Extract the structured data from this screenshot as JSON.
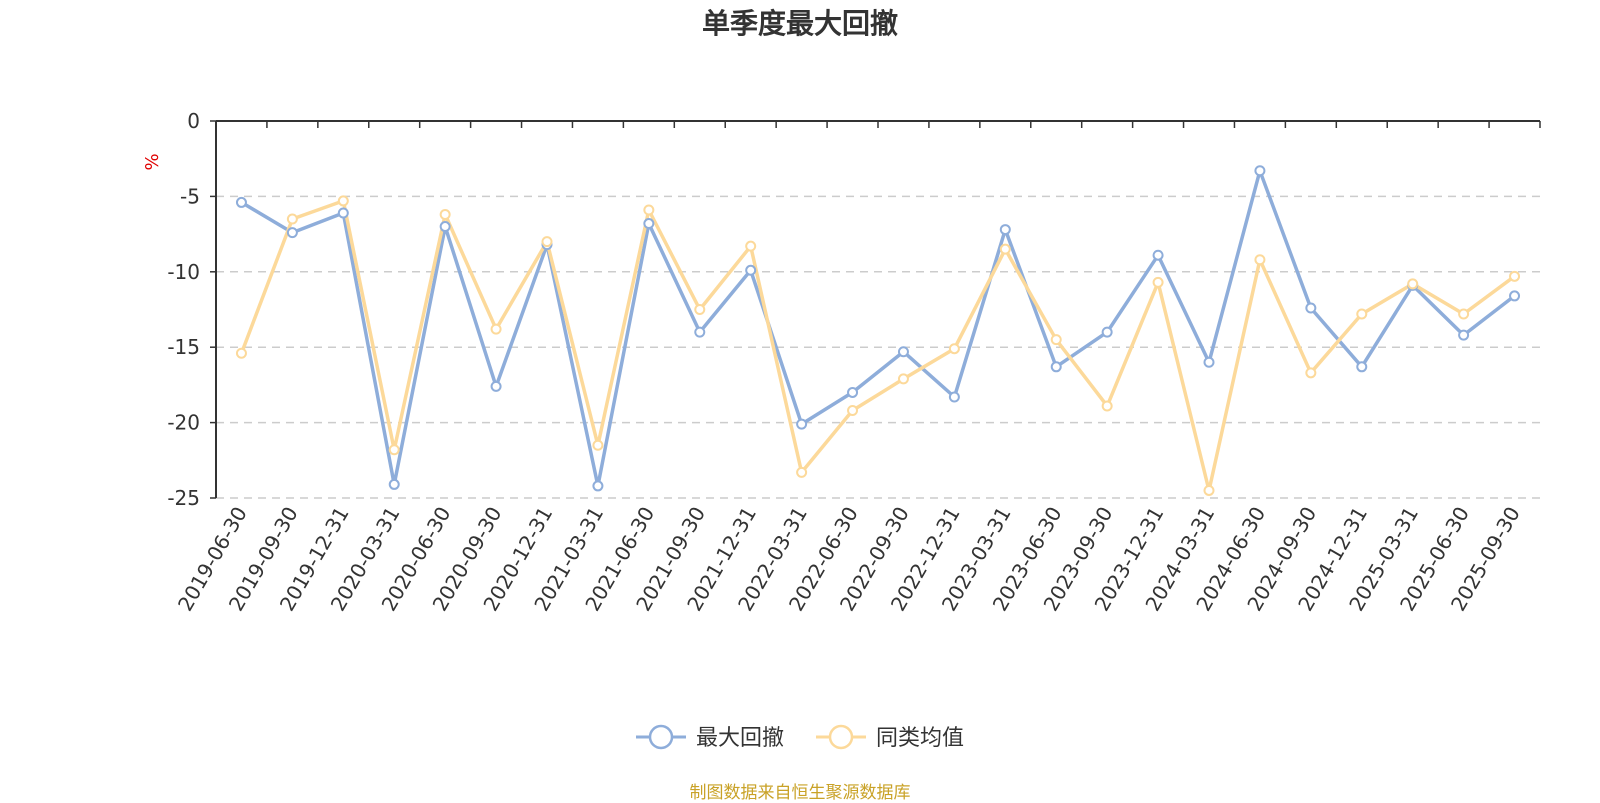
{
  "chart_data": {
    "type": "line",
    "title": "单季度最大回撤",
    "ylabel": "%",
    "ylim": [
      -25,
      0
    ],
    "yticks": [
      0,
      -5,
      -10,
      -15,
      -20,
      -25
    ],
    "grid": true,
    "legend_placement": "bottom-center",
    "categories": [
      "2019-06-30",
      "2019-09-30",
      "2019-12-31",
      "2020-03-31",
      "2020-06-30",
      "2020-09-30",
      "2020-12-31",
      "2021-03-31",
      "2021-06-30",
      "2021-09-30",
      "2021-12-31",
      "2022-03-31",
      "2022-06-30",
      "2022-09-30",
      "2022-12-31",
      "2023-03-31",
      "2023-06-30",
      "2023-09-30",
      "2023-12-31",
      "2024-03-31",
      "2024-06-30",
      "2024-09-30",
      "2024-12-31",
      "2025-03-31",
      "2025-06-30",
      "2025-09-30"
    ],
    "series": [
      {
        "name": "最大回撤",
        "color": "#8eadda",
        "values": [
          -5.4,
          -7.4,
          -6.1,
          -24.1,
          -7.0,
          -17.6,
          -8.2,
          -24.2,
          -6.8,
          -14.0,
          -9.9,
          -20.1,
          -18.0,
          -15.3,
          -18.3,
          -7.2,
          -16.3,
          -14.0,
          -8.9,
          -16.0,
          -3.3,
          -12.4,
          -16.3,
          -10.9,
          -14.2,
          -11.6
        ]
      },
      {
        "name": "同类均值",
        "color": "#fcd99a",
        "values": [
          -15.4,
          -6.5,
          -5.3,
          -21.8,
          -6.2,
          -13.8,
          -8.0,
          -21.5,
          -5.9,
          -12.5,
          -8.3,
          -23.3,
          -19.2,
          -17.1,
          -15.1,
          -8.5,
          -14.5,
          -18.9,
          -10.7,
          -24.5,
          -9.2,
          -16.7,
          -12.8,
          -10.8,
          -12.8,
          -10.3
        ]
      }
    ]
  },
  "footer": {
    "source": "制图数据来自恒生聚源数据库"
  }
}
